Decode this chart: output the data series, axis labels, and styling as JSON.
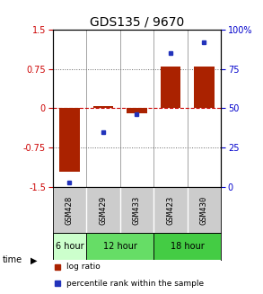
{
  "title": "GDS135 / 9670",
  "samples": [
    "GSM428",
    "GSM429",
    "GSM433",
    "GSM423",
    "GSM430"
  ],
  "log_ratio": [
    -1.2,
    0.05,
    -0.1,
    0.8,
    0.8
  ],
  "percentile_rank": [
    3,
    35,
    46,
    85,
    92
  ],
  "ylim_left": [
    -1.5,
    1.5
  ],
  "ylim_right": [
    0,
    100
  ],
  "yticks_left": [
    -1.5,
    -0.75,
    0,
    0.75,
    1.5
  ],
  "yticks_right": [
    0,
    25,
    50,
    75,
    100
  ],
  "ytick_labels_right": [
    "0",
    "25",
    "50",
    "75",
    "100%"
  ],
  "bar_color": "#aa2200",
  "dot_color": "#2233bb",
  "group_defs": [
    {
      "label": "6 hour",
      "start": 0,
      "end": 0,
      "color": "#ccffcc"
    },
    {
      "label": "12 hour",
      "start": 1,
      "end": 2,
      "color": "#66dd66"
    },
    {
      "label": "18 hour",
      "start": 3,
      "end": 4,
      "color": "#44cc44"
    }
  ],
  "legend_bar_label": "log ratio",
  "legend_dot_label": "percentile rank within the sample",
  "hline_color": "#cc0000",
  "dotted_color": "#666666",
  "bg_sample_row": "#cccccc",
  "title_fontsize": 10,
  "tick_fontsize": 7,
  "sample_fontsize": 6.5
}
